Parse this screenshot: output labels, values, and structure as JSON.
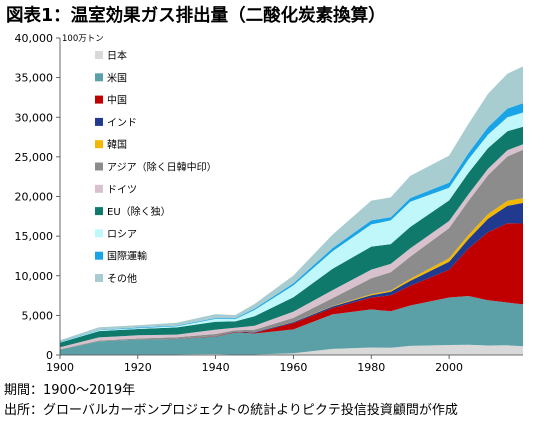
{
  "title": "図表1：温室効果ガス排出量（二酸化炭素換算）",
  "footnotes": {
    "period": "期間：1900～2019年",
    "source": "出所：グローバルカーボンプロジェクトの統計よりピクテ投信投資顧問が作成"
  },
  "chart_data": {
    "type": "area",
    "stacked": true,
    "title": "図表1：温室効果ガス排出量（二酸化炭素換算）",
    "ylabel": "100万トン",
    "xlabel": "",
    "xlim": [
      1900,
      2019
    ],
    "ylim": [
      0,
      40000
    ],
    "x_ticks": [
      1900,
      1920,
      1940,
      1960,
      1980,
      2000
    ],
    "y_ticks": [
      0,
      5000,
      10000,
      15000,
      20000,
      25000,
      30000,
      35000,
      40000
    ],
    "y_tick_labels": [
      "0",
      "5,000",
      "10,000",
      "15,000",
      "20,000",
      "25,000",
      "30,000",
      "35,000",
      "40,000"
    ],
    "legend_position": "top-left",
    "x": [
      1900,
      1910,
      1920,
      1930,
      1940,
      1945,
      1950,
      1960,
      1970,
      1980,
      1985,
      1990,
      2000,
      2005,
      2010,
      2015,
      2019
    ],
    "series": [
      {
        "name": "日本",
        "color": "#d9d9d9",
        "values": [
          10,
          20,
          35,
          60,
          120,
          40,
          60,
          230,
          770,
          950,
          920,
          1150,
          1260,
          1290,
          1200,
          1230,
          1110
        ]
      },
      {
        "name": "米国",
        "color": "#5b9fa7",
        "values": [
          660,
          1700,
          1900,
          1950,
          2200,
          2800,
          2650,
          3000,
          4350,
          4800,
          4600,
          5100,
          6000,
          6150,
          5700,
          5400,
          5280
        ]
      },
      {
        "name": "中国",
        "color": "#c00000",
        "values": [
          0,
          0,
          0,
          10,
          50,
          60,
          80,
          800,
          800,
          1500,
          2000,
          2500,
          3500,
          6000,
          8600,
          10000,
          10200
        ]
      },
      {
        "name": "インド",
        "color": "#1f3a8f",
        "values": [
          0,
          0,
          0,
          10,
          30,
          30,
          80,
          120,
          200,
          300,
          450,
          600,
          1000,
          1200,
          1700,
          2200,
          2600
        ]
      },
      {
        "name": "韓国",
        "color": "#f2b800",
        "values": [
          0,
          0,
          0,
          0,
          5,
          5,
          10,
          30,
          50,
          130,
          170,
          250,
          450,
          500,
          580,
          620,
          610
        ]
      },
      {
        "name": "アジア（除く日韓中印）",
        "color": "#8c8c8c",
        "values": [
          50,
          100,
          150,
          200,
          250,
          200,
          300,
          500,
          1000,
          2000,
          2300,
          2800,
          3800,
          4300,
          4900,
          5600,
          6100
        ]
      },
      {
        "name": "ドイツ",
        "color": "#d6c1cc",
        "values": [
          250,
          400,
          400,
          350,
          550,
          300,
          500,
          800,
          1000,
          1100,
          1050,
          1050,
          900,
          850,
          830,
          790,
          700
        ]
      },
      {
        "name": "EU（除く独）",
        "color": "#0f7a6b",
        "values": [
          600,
          800,
          800,
          900,
          1000,
          800,
          1200,
          1800,
          2700,
          2900,
          2500,
          2700,
          2600,
          2700,
          2600,
          2400,
          2200
        ]
      },
      {
        "name": "ロシア",
        "color": "#bff7fb",
        "values": [
          50,
          100,
          100,
          150,
          350,
          300,
          800,
          1500,
          2200,
          2800,
          3000,
          3200,
          1600,
          1700,
          1700,
          1750,
          1800
        ]
      },
      {
        "name": "国際運輸",
        "color": "#19a4e8",
        "values": [
          50,
          50,
          80,
          80,
          100,
          100,
          150,
          250,
          400,
          500,
          400,
          450,
          650,
          800,
          950,
          1100,
          1170
        ]
      },
      {
        "name": "その他",
        "color": "#a8cdd0",
        "values": [
          200,
          330,
          300,
          350,
          500,
          400,
          600,
          1000,
          1700,
          2500,
          2500,
          2800,
          3400,
          3700,
          4200,
          4400,
          4650
        ]
      }
    ]
  }
}
